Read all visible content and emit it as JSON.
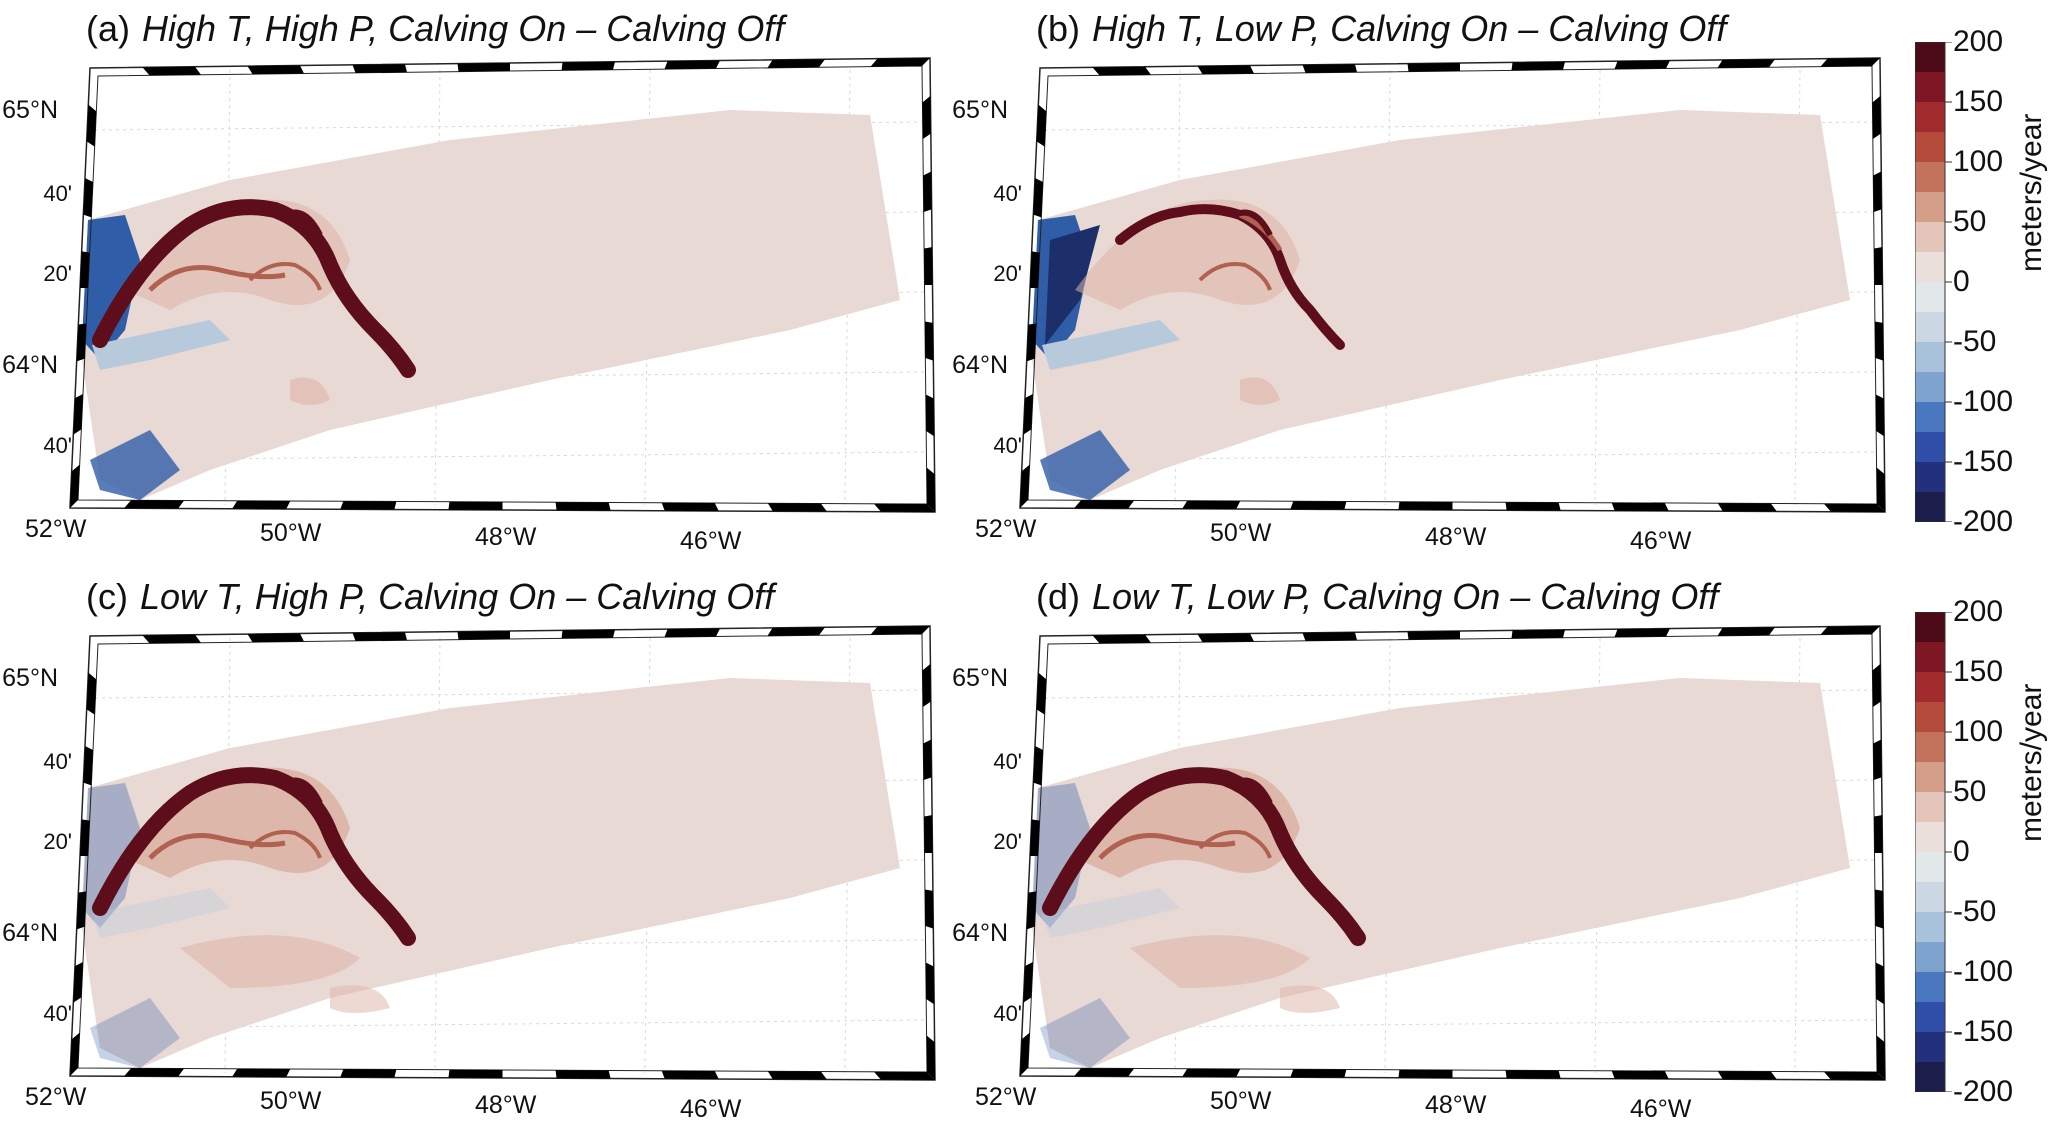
{
  "panels": [
    {
      "label": "(a)",
      "title": "High T, High P, Calving On – Calving Off",
      "variant": "high-p"
    },
    {
      "label": "(b)",
      "title": "High T, Low P, Calving On – Calving Off",
      "variant": "low-p"
    },
    {
      "label": "(c)",
      "title": "Low T, High P, Calving On – Calving Off",
      "variant": "low-t-high-p"
    },
    {
      "label": "(d)",
      "title": "Low T, Low P, Calving On – Calving Off",
      "variant": "low-t-low-p"
    }
  ],
  "axes": {
    "lat_labels": [
      "65°N",
      "40'",
      "20'",
      "64°N",
      "40'"
    ],
    "lon_labels": [
      "52°W",
      "50°W",
      "48°W",
      "46°W"
    ]
  },
  "colorbar": {
    "label": "meters/year",
    "ticks": [
      "200",
      "150",
      "100",
      "50",
      "0",
      "-50",
      "-100",
      "-150",
      "-200"
    ],
    "range": [
      -200,
      200
    ],
    "colors": [
      "#1b1e4a",
      "#23307c",
      "#2f4ea8",
      "#4a78c0",
      "#7ea3cf",
      "#a9c2db",
      "#cbd8e3",
      "#e2e7ea",
      "#eadfdb",
      "#e4c5b9",
      "#d49e88",
      "#c3735c",
      "#b34a3a",
      "#a02a2c",
      "#7e1624",
      "#4d0b17"
    ]
  },
  "palette": {
    "fill": "#e8d9d4",
    "strong_red": "#5e0d1a",
    "red": "#b0614f",
    "light_red": "#ddb3a6",
    "blue": "#2f5da8",
    "dark_blue": "#1c2f6b",
    "light_blue": "#b7cadc"
  }
}
